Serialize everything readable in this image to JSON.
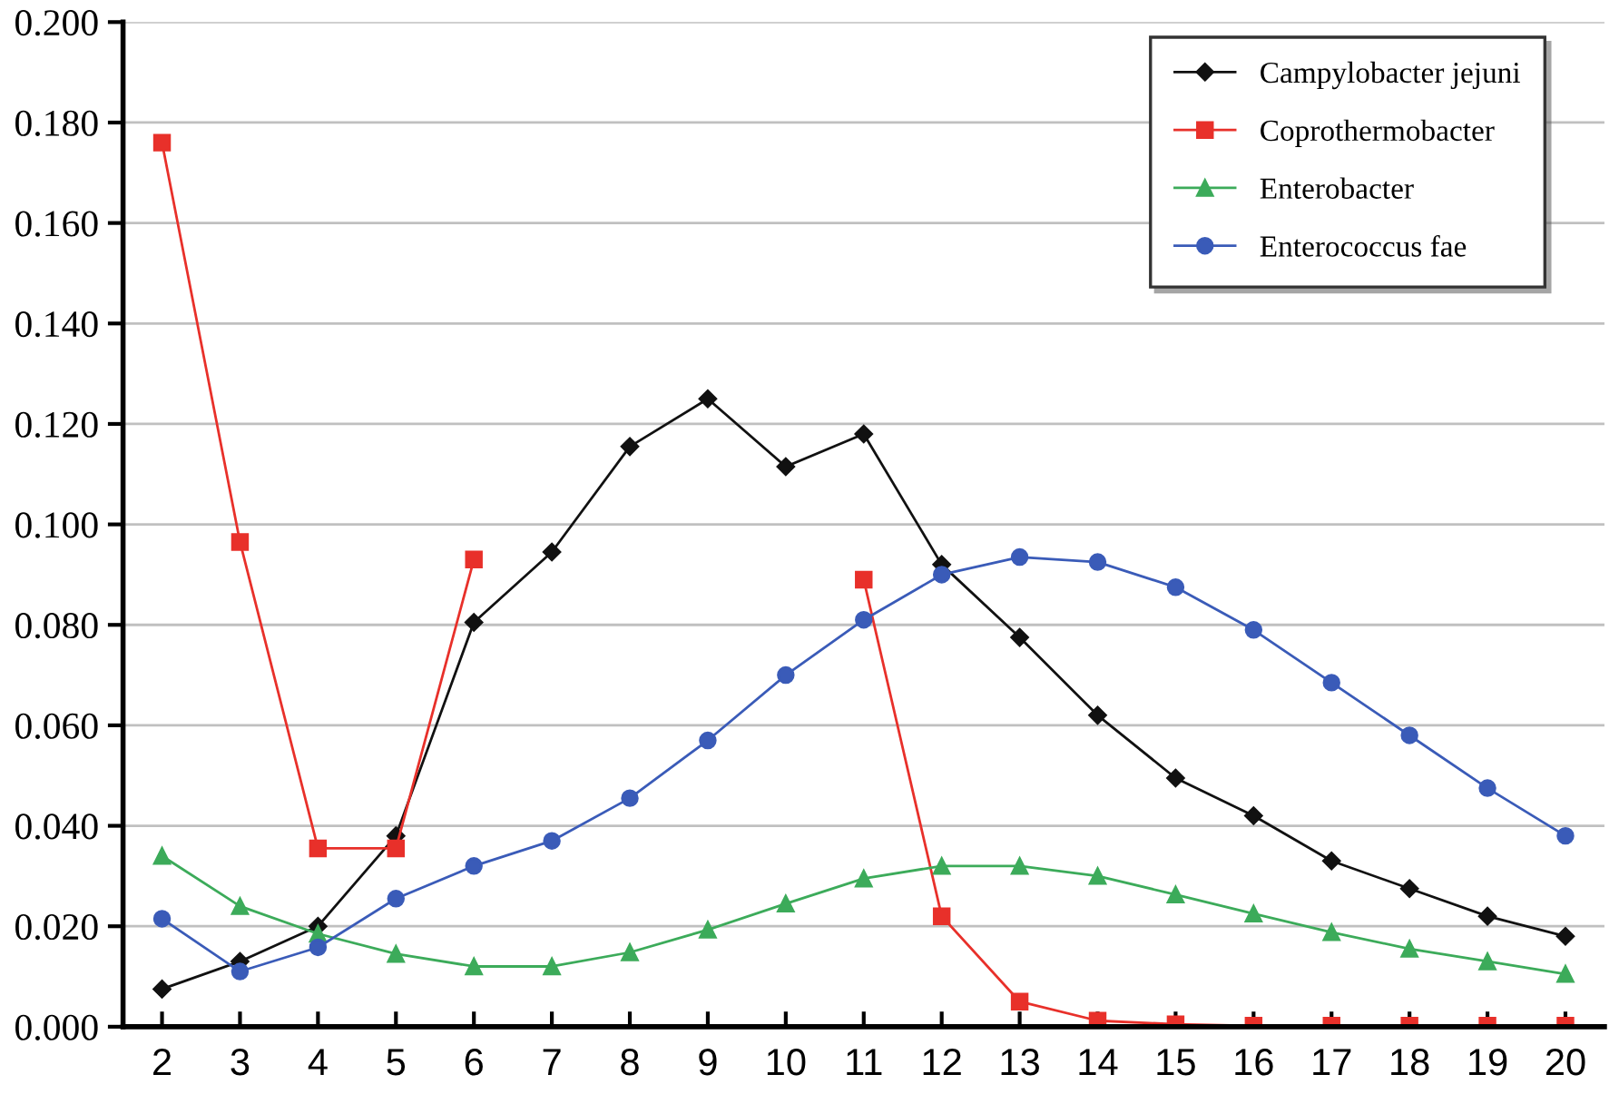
{
  "chart_data": {
    "type": "line",
    "categories": [
      "2",
      "3",
      "4",
      "5",
      "6",
      "7",
      "8",
      "9",
      "10",
      "11",
      "12",
      "13",
      "14",
      "15",
      "16",
      "17",
      "18",
      "19",
      "20"
    ],
    "ylim": [
      0,
      0.2
    ],
    "yticks": [
      {
        "value": 0,
        "label": "0.000"
      },
      {
        "value": 0.02,
        "label": "0.020"
      },
      {
        "value": 0.04,
        "label": "0.040"
      },
      {
        "value": 0.06,
        "label": "0.060"
      },
      {
        "value": 0.08,
        "label": "0.080"
      },
      {
        "value": 0.1,
        "label": "0.100"
      },
      {
        "value": 0.12,
        "label": "0.120"
      },
      {
        "value": 0.14,
        "label": "0.140"
      },
      {
        "value": 0.16,
        "label": "0.160"
      },
      {
        "value": 0.18,
        "label": "0.180"
      },
      {
        "value": 0.2,
        "label": "0.200"
      }
    ],
    "grid": "y",
    "legend": "top right",
    "series": [
      {
        "name": "Campylobacter jejuni",
        "color": "#111111",
        "marker": "diamond",
        "values": [
          0.0075,
          0.013,
          0.02,
          0.038,
          0.0805,
          0.0945,
          0.1155,
          0.125,
          0.1115,
          0.118,
          0.092,
          0.0775,
          0.062,
          0.0495,
          0.042,
          0.033,
          0.0275,
          0.022,
          0.018
        ]
      },
      {
        "name": "Coprothermobacter",
        "color": "#e8302a",
        "marker": "square",
        "values": [
          0.176,
          0.0965,
          0.0355,
          0.0355,
          0.093,
          null,
          null,
          null,
          null,
          0.089,
          0.022,
          0.005,
          0.0012,
          0.0005,
          0.0002,
          0.0002,
          0.0002,
          0.0002,
          0.0002
        ]
      },
      {
        "name": "Enterobacter",
        "color": "#3cab5a",
        "marker": "triangle",
        "values": [
          0.034,
          0.024,
          0.0185,
          0.0145,
          0.012,
          0.012,
          0.0148,
          0.0193,
          0.0245,
          0.0295,
          0.032,
          0.032,
          0.03,
          0.0263,
          0.0225,
          0.0188,
          0.0155,
          0.013,
          0.0105
        ]
      },
      {
        "name": "Enterococcus fae",
        "color": "#3a5bb8",
        "marker": "circle",
        "values": [
          0.0215,
          0.011,
          0.0158,
          0.0255,
          0.032,
          0.037,
          0.0455,
          0.057,
          0.07,
          0.081,
          0.09,
          0.0935,
          0.0925,
          0.0875,
          0.079,
          0.0685,
          0.058,
          0.0475,
          0.038
        ]
      }
    ]
  }
}
